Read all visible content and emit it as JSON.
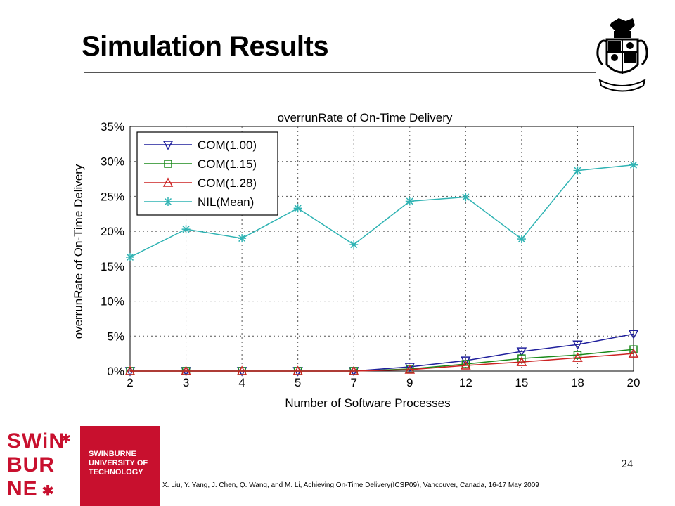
{
  "slide": {
    "title": "Simulation Results",
    "page_number": "24",
    "citation": "X. Liu, Y. Yang, J. Chen, Q. Wang, and M. Li, Achieving  On-Time Delivery(ICSP09), Vancouver, Canada, 16-17 May 2009"
  },
  "logo": {
    "line1": "SWiN",
    "line2": "BUR",
    "line3": "NE",
    "uni_line1": "SWINBURNE",
    "uni_line2": "UNIVERSITY OF",
    "uni_line3": "TECHNOLOGY"
  },
  "chart_data": {
    "type": "line",
    "title": "overrunRate of On-Time Delivery",
    "xlabel": "Number of Software Processes",
    "ylabel": "overrunRate of On-Time Delivery",
    "categories": [
      "2",
      "3",
      "4",
      "5",
      "7",
      "9",
      "12",
      "15",
      "18",
      "20"
    ],
    "ylim": [
      0,
      35
    ],
    "yticks": [
      "0%",
      "5%",
      "10%",
      "15%",
      "20%",
      "25%",
      "30%",
      "35%"
    ],
    "grid": true,
    "legend_position": "top-left",
    "series": [
      {
        "name": "COM(1.00)",
        "color": "#1f1f9c",
        "marker": "triangle-down",
        "values": [
          0,
          0,
          0,
          0,
          0,
          0.6,
          1.5,
          2.8,
          3.8,
          5.3
        ]
      },
      {
        "name": "COM(1.15)",
        "color": "#1a8a1a",
        "marker": "square",
        "values": [
          0,
          0,
          0,
          0,
          0,
          0.3,
          1.0,
          1.8,
          2.3,
          3.1
        ]
      },
      {
        "name": "COM(1.28)",
        "color": "#cc2222",
        "marker": "triangle-up",
        "values": [
          0,
          0,
          0,
          0,
          0,
          0.2,
          0.8,
          1.3,
          1.9,
          2.5
        ]
      },
      {
        "name": "NIL(Mean)",
        "color": "#2fb3b3",
        "marker": "asterisk",
        "values": [
          16.3,
          20.3,
          19.0,
          23.3,
          18.1,
          24.3,
          24.9,
          18.9,
          28.7,
          29.5
        ]
      }
    ]
  }
}
